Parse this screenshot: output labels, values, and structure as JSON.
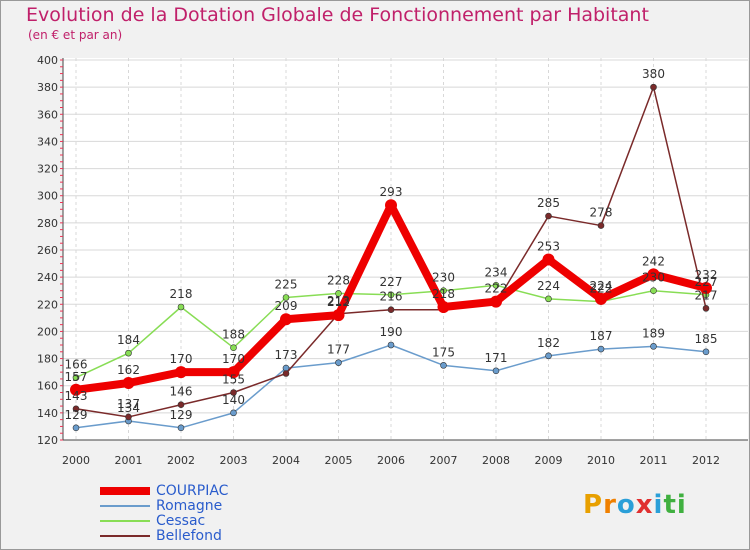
{
  "title": "Evolution de la Dotation Globale de Fonctionnement par Habitant",
  "subtitle": "(en € et par an)",
  "logo": {
    "text": "Proxiti",
    "letters": [
      "P",
      "r",
      "o",
      "x",
      "i",
      "t",
      "i"
    ],
    "colors": [
      "#e8a000",
      "#f08000",
      "#2a9fd8",
      "#e03030",
      "#2a9fd8",
      "#40b040",
      "#40b040"
    ]
  },
  "chart_data": {
    "type": "line",
    "title": "Evolution de la Dotation Globale de Fonctionnement par Habitant",
    "ylabel": "(en € et par an)",
    "x": [
      "2000",
      "2001",
      "2002",
      "2003",
      "2004",
      "2005",
      "2006",
      "2007",
      "2008",
      "2009",
      "2010",
      "2011",
      "2012"
    ],
    "ylim": [
      120,
      400
    ],
    "yticks": [
      120,
      140,
      160,
      180,
      200,
      220,
      240,
      260,
      280,
      300,
      320,
      340,
      360,
      380,
      400
    ],
    "series": [
      {
        "name": "COURPIAC",
        "color": "#ee0000",
        "values": [
          157,
          162,
          170,
          170,
          209,
          212,
          293,
          218,
          222,
          253,
          224,
          242,
          232
        ],
        "labels": [
          "157",
          "162",
          "170",
          "170",
          "209",
          "212",
          "293",
          "218",
          "222",
          "253",
          "224",
          "242",
          "232"
        ]
      },
      {
        "name": "Romagne",
        "color": "#6a9ccc",
        "values": [
          129,
          134,
          129,
          140,
          173,
          177,
          190,
          175,
          171,
          182,
          187,
          189,
          185
        ],
        "labels": [
          "129",
          "134",
          "129",
          "140",
          "173",
          "177",
          "190",
          "175",
          "171",
          "182",
          "187",
          "189",
          "185"
        ]
      },
      {
        "name": "Cessac",
        "color": "#88dd55",
        "values": [
          166,
          184,
          218,
          188,
          225,
          228,
          227,
          230,
          234,
          224,
          222,
          230,
          227
        ],
        "labels": [
          "166",
          "184",
          "218",
          "188",
          "225",
          "228",
          "227",
          "230",
          "234",
          "224",
          "222",
          "230",
          "227"
        ]
      },
      {
        "name": "Bellefond",
        "color": "#7a2a2a",
        "values": [
          143,
          137,
          146,
          155,
          169,
          213,
          216,
          216,
          221,
          285,
          278,
          380,
          217
        ],
        "labels": [
          "143",
          "137",
          "146",
          "155",
          "",
          "213",
          "216",
          "",
          "",
          "285",
          "278",
          "380",
          "217"
        ]
      }
    ]
  }
}
